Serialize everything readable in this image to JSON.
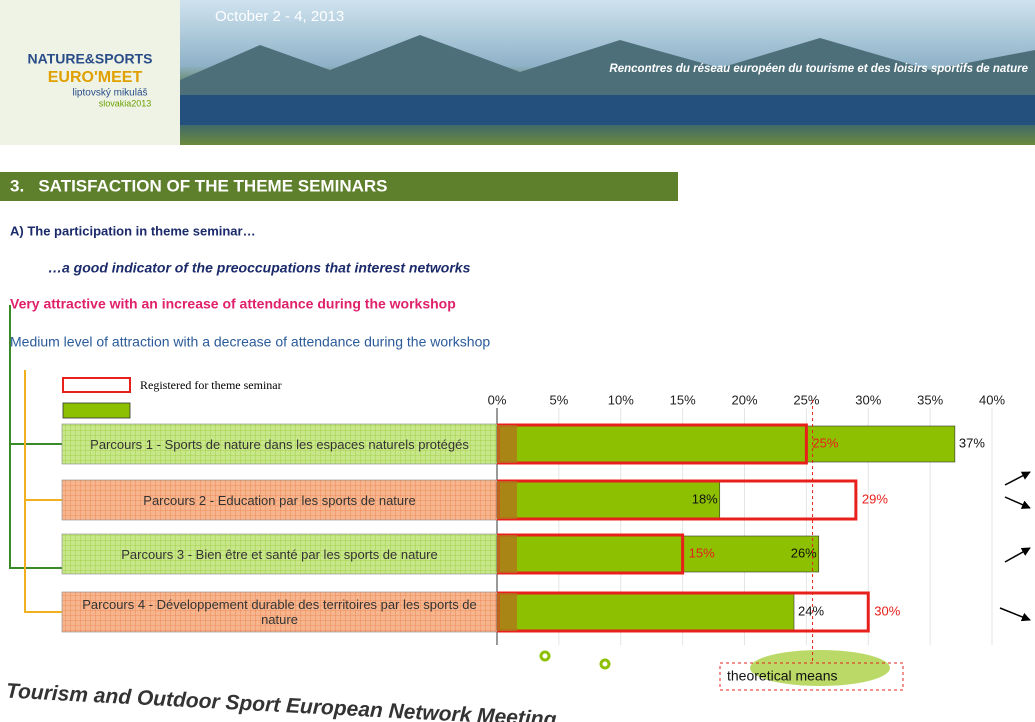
{
  "header": {
    "date": "October 2 - 4, 2013",
    "tagline": "Rencontres du réseau européen du tourisme et des loisirs sportifs de nature",
    "logo": [
      "NATURE&SPORTS",
      "EURO'MEET",
      "liptovský mikuláš",
      "slovakia2013"
    ]
  },
  "section_title": "3.   SATISFACTION OF THE THEME SEMINARS",
  "subtitle": "A) The participation in theme seminar…",
  "subtitle2": "…a good indicator of the preoccupations that interest networks",
  "legend_notes": [
    "Very attractive with an increase of attendance during the workshop",
    "Medium level of attraction with a decrease of attendance during the workshop"
  ],
  "footer": "Tourism and Outdoor Sport European Network Meeting",
  "chart_data": {
    "type": "bar",
    "orientation": "horizontal",
    "categories": [
      "Parcours 1 - Sports de nature dans les espaces naturels protégés",
      "Parcours 2 - Education par les sports de nature",
      "Parcours 3 - Bien être et santé par les  sports de nature",
      "Parcours 4 - Développement durable des territoires par les sports de nature"
    ],
    "series": [
      {
        "name": "Registered for theme seminar",
        "color": "#e8201c",
        "style": "outline",
        "values": [
          25,
          29,
          15,
          30
        ],
        "value_labels": [
          "25%",
          "29%",
          "15%",
          "30%"
        ]
      },
      {
        "color": "#8dc000",
        "style": "filled",
        "values": [
          37,
          18,
          26,
          24
        ],
        "value_labels": [
          "37%",
          "18%",
          "26%",
          "24%"
        ]
      }
    ],
    "xlim": [
      0,
      40
    ],
    "xticks": [
      {
        "value": 0,
        "label": "0%"
      },
      {
        "value": 5,
        "label": "5%"
      },
      {
        "value": 10,
        "label": "10%"
      },
      {
        "value": 15,
        "label": "15%"
      },
      {
        "value": 20,
        "label": "20%"
      },
      {
        "value": 25,
        "label": "25%"
      },
      {
        "value": 30,
        "label": "30%"
      },
      {
        "value": 35,
        "label": "35%"
      },
      {
        "value": 40,
        "label": "40%"
      }
    ],
    "grid": true,
    "annotation": {
      "text": "theoretical means",
      "value": 25.5
    }
  }
}
